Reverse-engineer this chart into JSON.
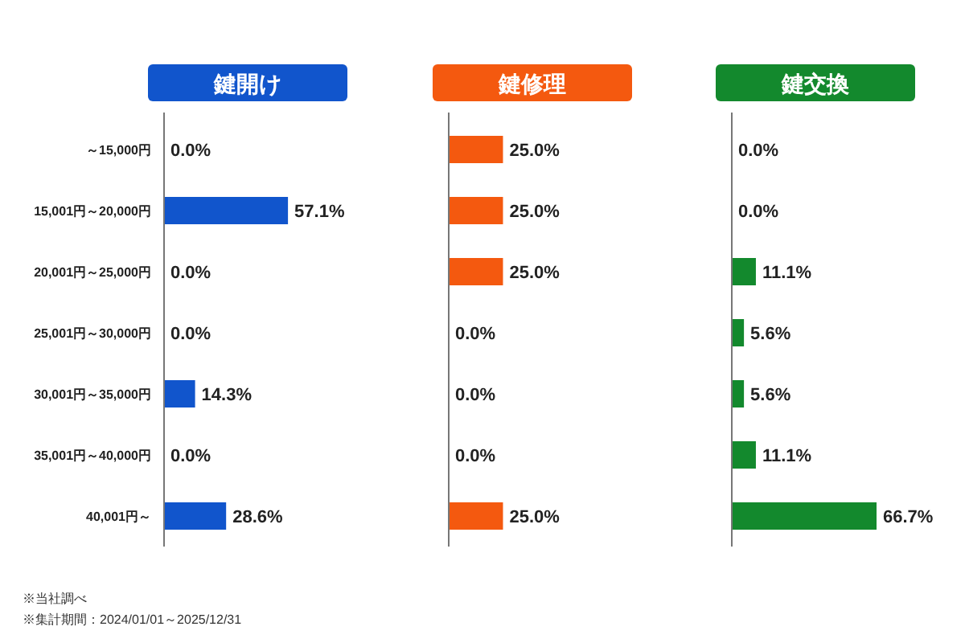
{
  "chart_data": [
    {
      "type": "bar",
      "orientation": "horizontal",
      "title": "鍵開け",
      "color": "#1155cc",
      "categories": [
        "～15,000円",
        "15,001円～20,000円",
        "20,001円～25,000円",
        "25,001円～30,000円",
        "30,001円～35,000円",
        "35,001円～40,000円",
        "40,001円～"
      ],
      "values": [
        0.0,
        57.1,
        0.0,
        0.0,
        14.3,
        0.0,
        28.6
      ],
      "value_labels": [
        "0.0%",
        "57.1%",
        "0.0%",
        "0.0%",
        "14.3%",
        "0.0%",
        "28.6%"
      ],
      "tick_labels": "y",
      "annotations": [
        "※当社調べ",
        "※集計期間：2024/01/01～2025/12/31"
      ]
    },
    {
      "type": "bar",
      "orientation": "horizontal",
      "title": "鍵修理",
      "color": "#f4590f",
      "values": [
        25.0,
        25.0,
        25.0,
        0.0,
        0.0,
        0.0,
        25.0
      ],
      "value_labels": [
        "25.0%",
        "25.0%",
        "25.0%",
        "0.0%",
        "0.0%",
        "0.0%",
        "25.0%"
      ],
      "tick_labels": false
    },
    {
      "type": "bar",
      "orientation": "horizontal",
      "title": "鍵交換",
      "color": "#13892d",
      "values": [
        0.0,
        0.0,
        11.1,
        5.6,
        5.6,
        11.1,
        66.7
      ],
      "value_labels": [
        "0.0%",
        "0.0%",
        "11.1%",
        "5.6%",
        "5.6%",
        "11.1%",
        "66.7%"
      ],
      "tick_labels": false
    }
  ]
}
